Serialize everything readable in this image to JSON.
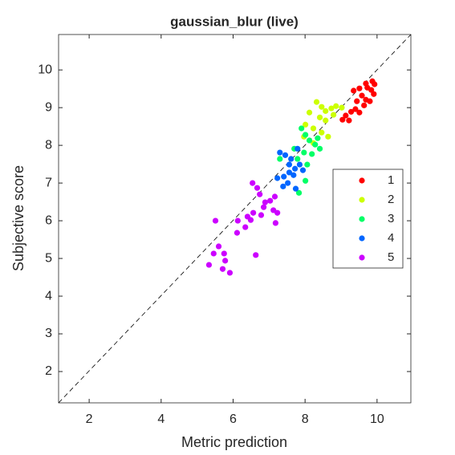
{
  "chart_data": {
    "type": "scatter",
    "title": "gaussian_blur (live)",
    "xlabel": "Metric prediction",
    "ylabel": "Subjective score",
    "xlim": [
      1.15,
      10.94
    ],
    "ylim": [
      1.17,
      10.94
    ],
    "xticks": [
      2,
      4,
      6,
      8,
      10
    ],
    "yticks": [
      2,
      3,
      4,
      5,
      6,
      7,
      8,
      9,
      10
    ],
    "grid": false,
    "legend": "east",
    "series": [
      {
        "name": "1",
        "color": "#ff0000",
        "x": [
          9.35,
          9.51,
          9.69,
          9.73,
          9.87,
          9.84,
          9.58,
          9.44,
          9.69,
          9.91,
          9.93,
          9.4,
          9.64,
          9.8,
          9.28,
          9.13,
          9.04,
          9.22,
          9.51
        ],
        "values": [
          9.45,
          9.51,
          9.64,
          9.53,
          9.7,
          9.47,
          9.32,
          9.17,
          9.21,
          9.36,
          9.62,
          8.96,
          9.06,
          9.17,
          8.89,
          8.79,
          8.68,
          8.66,
          8.87
        ]
      },
      {
        "name": "2",
        "color": "#ccff00",
        "x": [
          8.32,
          8.46,
          8.57,
          8.73,
          8.86,
          9.02,
          8.41,
          8.57,
          8.79,
          8.12,
          8.01,
          8.23,
          8.46,
          8.64,
          7.97,
          8.23
        ],
        "values": [
          9.15,
          9.02,
          8.91,
          8.98,
          9.04,
          9.0,
          8.74,
          8.66,
          8.81,
          8.87,
          8.55,
          8.45,
          8.34,
          8.23,
          8.23,
          8.06
        ]
      },
      {
        "name": "3",
        "color": "#00ff66",
        "x": [
          7.9,
          8.01,
          8.12,
          8.28,
          8.41,
          7.97,
          8.19,
          7.79,
          8.06,
          8.35,
          7.83,
          8.01,
          7.7,
          7.3
        ],
        "values": [
          8.45,
          8.28,
          8.13,
          8.02,
          7.91,
          7.81,
          7.77,
          7.64,
          7.49,
          8.19,
          6.74,
          7.06,
          7.91,
          7.64
        ]
      },
      {
        "name": "4",
        "color": "#0066ff",
        "x": [
          7.3,
          7.45,
          7.61,
          7.79,
          7.72,
          7.56,
          7.41,
          7.52,
          7.68,
          7.39,
          7.85,
          7.94,
          7.56,
          7.23,
          7.74
        ],
        "values": [
          7.81,
          7.74,
          7.64,
          7.91,
          7.38,
          7.28,
          7.17,
          7.0,
          7.21,
          6.91,
          7.49,
          7.34,
          7.49,
          7.13,
          6.85
        ]
      },
      {
        "name": "5",
        "color": "#cc00ff",
        "x": [
          6.54,
          6.67,
          6.74,
          6.89,
          7.03,
          7.16,
          6.85,
          7.12,
          7.23,
          6.56,
          6.4,
          6.13,
          6.49,
          6.78,
          6.34,
          6.11,
          5.51,
          7.18,
          5.6,
          5.75,
          5.46,
          5.78,
          5.33,
          5.71,
          5.91,
          6.63
        ],
        "values": [
          7.0,
          6.87,
          6.7,
          6.49,
          6.53,
          6.64,
          6.36,
          6.28,
          6.21,
          6.21,
          6.11,
          6.0,
          6.02,
          6.15,
          5.83,
          5.68,
          6.0,
          5.94,
          5.32,
          5.13,
          5.13,
          4.94,
          4.83,
          4.72,
          4.62,
          5.09
        ]
      }
    ]
  }
}
